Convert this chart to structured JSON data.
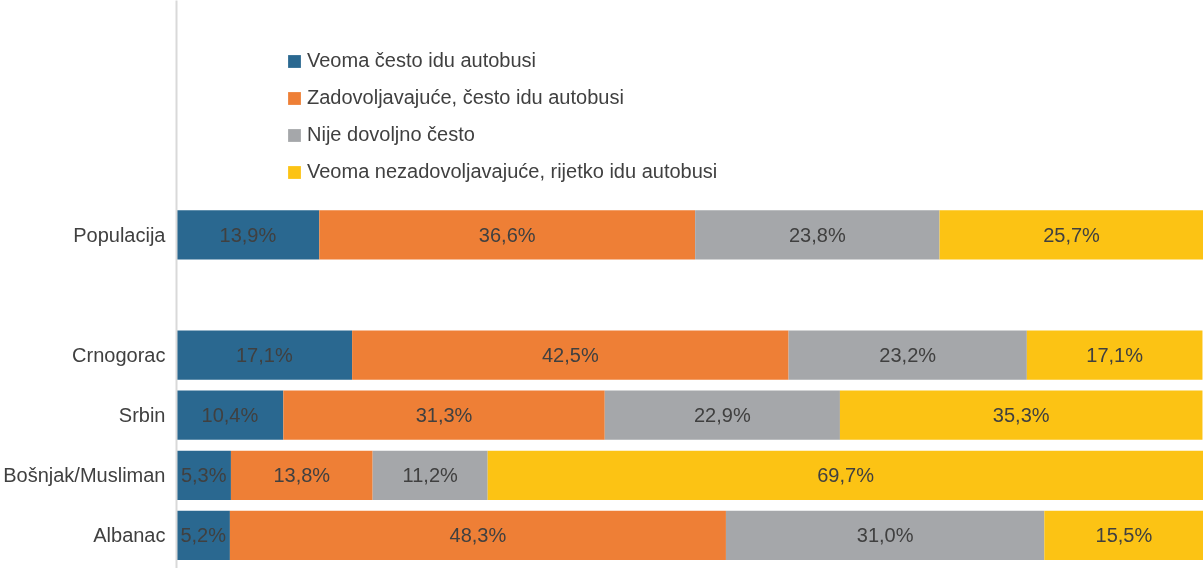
{
  "chart_data": {
    "type": "bar",
    "orientation": "horizontal",
    "stacked": true,
    "legend": "top",
    "grid": false,
    "categories": [
      "Populacija",
      null,
      "Crnogorac",
      "Srbin",
      "Bošnjak/Musliman",
      "Albanac"
    ],
    "series": [
      {
        "name": "Veoma često idu autobusi",
        "color": "#2a6890",
        "values": [
          13.9,
          null,
          17.1,
          10.4,
          5.3,
          5.2
        ],
        "value_labels": [
          "13,9%",
          null,
          "17,1%",
          "10,4%",
          "5,3%",
          "5,2%"
        ]
      },
      {
        "name": "Zadovoljavajuće, često idu autobusi",
        "color": "#ee7f36",
        "values": [
          36.6,
          null,
          42.5,
          31.3,
          13.8,
          48.3
        ],
        "value_labels": [
          "36,6%",
          null,
          "42,5%",
          "31,3%",
          "13,8%",
          "48,3%"
        ]
      },
      {
        "name": "Nije dovoljno često",
        "color": "#a5a7aa",
        "values": [
          23.8,
          null,
          23.2,
          22.9,
          11.2,
          31.0
        ],
        "value_labels": [
          "23,8%",
          null,
          "23,2%",
          "22,9%",
          "11,2%",
          "31,0%"
        ]
      },
      {
        "name": "Veoma nezadovoljavajuće, rijetko idu autobusi",
        "color": "#fcc314",
        "values": [
          25.7,
          null,
          17.1,
          35.3,
          69.7,
          15.5
        ],
        "value_labels": [
          "25,7%",
          null,
          "17,1%",
          "35,3%",
          "69,7%",
          "15,5%"
        ]
      }
    ]
  }
}
